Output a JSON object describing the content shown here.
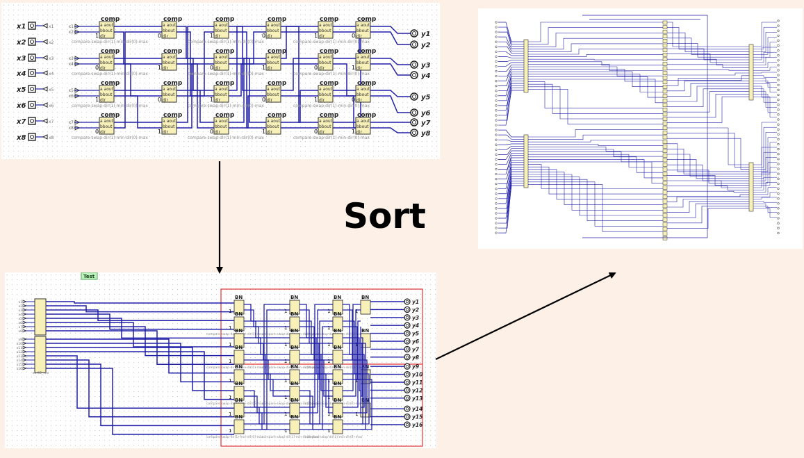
{
  "heading": "Sort",
  "top_circuit": {
    "inputs": [
      "x1",
      "x2",
      "x3",
      "x4",
      "x5",
      "x6",
      "x7",
      "x8"
    ],
    "outputs": [
      "y1",
      "y2",
      "y3",
      "y4",
      "y5",
      "y6",
      "y7",
      "y8"
    ],
    "block_title": "comp",
    "block_ports": [
      "a aout",
      "bbout",
      "dir"
    ],
    "block_caption": "compare-swap-dir(1)-min-dir(0)-max",
    "dir_values": [
      "1",
      "0"
    ],
    "columns": 6
  },
  "bottom_circuit": {
    "test_label": "Test",
    "outputs": [
      "y1",
      "y2",
      "y3",
      "y4",
      "y5",
      "y6",
      "y7",
      "y8",
      "y9",
      "y10",
      "y11",
      "y12",
      "y13",
      "y14",
      "y15",
      "y16"
    ],
    "block_title": "BN",
    "block_caption": "compare-swap-dir(1)-min-dir(0)-max",
    "sub_label": "sort8_rev"
  },
  "colors": {
    "background": "#fdf1e7",
    "wire": "#1f1fa8",
    "block_fill": "#f7f0b8",
    "highlight": "#e03030",
    "arrow": "#000000"
  }
}
